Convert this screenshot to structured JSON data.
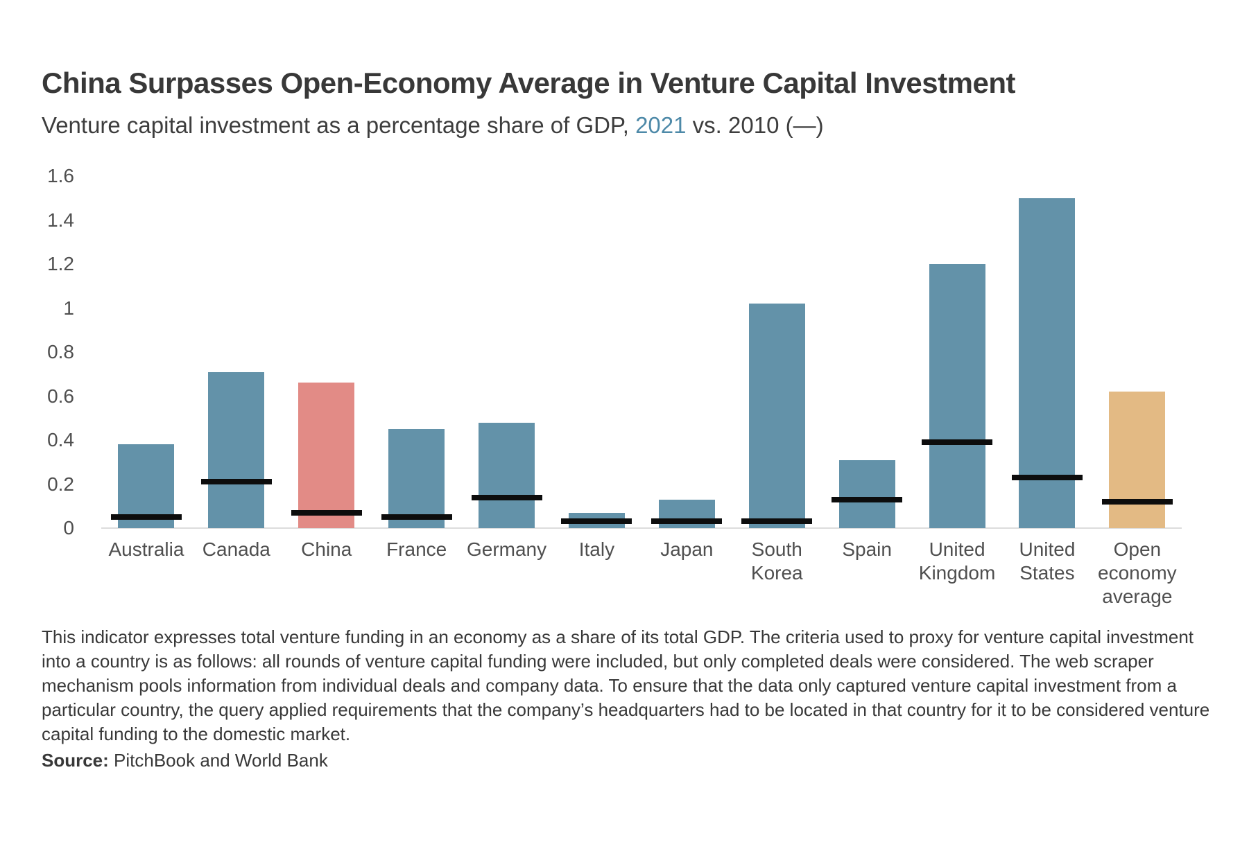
{
  "header": {
    "title": "China Surpasses Open-Economy Average in Venture Capital Investment",
    "subtitle_prefix": "Venture capital investment as a percentage share of GDP, ",
    "subtitle_highlight": "2021",
    "subtitle_suffix": " vs. 2010 (—)"
  },
  "chart_data": {
    "type": "bar",
    "title": "China Surpasses Open-Economy Average in Venture Capital Investment",
    "subtitle": "Venture capital investment as a percentage share of GDP, 2021 vs. 2010 (—)",
    "xlabel": "",
    "ylabel": "",
    "ylim": [
      0,
      1.6
    ],
    "yticks": [
      "0",
      "0.2",
      "0.4",
      "0.6",
      "0.8",
      "1",
      "1.2",
      "1.4",
      "1.6"
    ],
    "grid": "off",
    "legend": "none (2021 = filled bar, 2010 = black dash marker, noted in subtitle)",
    "categories": [
      "Australia",
      "Canada",
      "China",
      "France",
      "Germany",
      "Italy",
      "Japan",
      "South Korea",
      "Spain",
      "United Kingdom",
      "United States",
      "Open economy average"
    ],
    "category_lines": [
      [
        "Australia"
      ],
      [
        "Canada"
      ],
      [
        "China"
      ],
      [
        "France"
      ],
      [
        "Germany"
      ],
      [
        "Italy"
      ],
      [
        "Japan"
      ],
      [
        "South",
        "Korea"
      ],
      [
        "Spain"
      ],
      [
        "United",
        "Kingdom"
      ],
      [
        "United",
        "States"
      ],
      [
        "Open",
        "economy",
        "average"
      ]
    ],
    "series": [
      {
        "name": "2021",
        "values": [
          0.38,
          0.71,
          0.66,
          0.45,
          0.48,
          0.07,
          0.13,
          1.02,
          0.31,
          1.2,
          1.5,
          0.62
        ]
      },
      {
        "name": "2010",
        "values": [
          0.05,
          0.21,
          0.07,
          0.05,
          0.14,
          0.03,
          0.03,
          0.03,
          0.13,
          0.39,
          0.23,
          0.12
        ]
      }
    ],
    "colors": {
      "bar_default": "#6392a9",
      "bar_overrides": {
        "China": "#e28b86",
        "Open economy average": "#e3ba84"
      },
      "marker_2010": "#0d0d0d",
      "subtitle_year_highlight": "#4d89a8",
      "axis_text": "#4f4f4f",
      "baseline": "#dcdcdc"
    }
  },
  "notes": {
    "text": "This indicator expresses total venture funding in an economy as a share of its total GDP. The criteria used to proxy for venture capital investment into a country is as follows: all rounds of venture capital funding were included, but only completed deals were considered. The web scraper mechanism pools information from individual deals and company data. To ensure that the data only captured venture capital investment from a particular country, the query applied requirements that the company’s headquarters had to be located in that country for it to be considered venture capital funding to the domestic market."
  },
  "source": {
    "label": "Source:",
    "text": " PitchBook and World Bank"
  }
}
